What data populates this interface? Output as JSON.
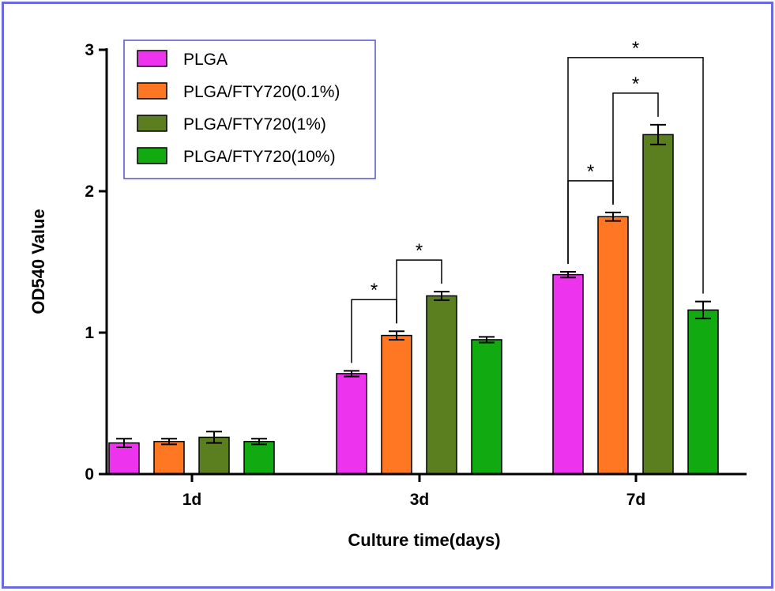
{
  "chart_data": {
    "type": "bar",
    "xlabel": "Culture time(days)",
    "ylabel": "OD540 Value",
    "categories": [
      "1d",
      "3d",
      "7d"
    ],
    "ylim": [
      0,
      3
    ],
    "yticks": [
      0,
      1,
      2,
      3
    ],
    "series": [
      {
        "name": "PLGA",
        "color": "#ee33ee",
        "values": [
          0.22,
          0.71,
          1.41
        ],
        "errors": [
          0.03,
          0.02,
          0.02
        ]
      },
      {
        "name": "PLGA/FTY720(0.1%)",
        "color": "#ff7722",
        "values": [
          0.23,
          0.98,
          1.82
        ],
        "errors": [
          0.02,
          0.03,
          0.03
        ]
      },
      {
        "name": "PLGA/FTY720(1%)",
        "color": "#5b7f1e",
        "values": [
          0.26,
          1.26,
          2.4
        ],
        "errors": [
          0.04,
          0.03,
          0.07
        ]
      },
      {
        "name": "PLGA/FTY720(10%)",
        "color": "#11aa11",
        "values": [
          0.23,
          0.95,
          1.16
        ],
        "errors": [
          0.02,
          0.02,
          0.06
        ]
      }
    ],
    "significance": [
      {
        "category": "3d",
        "from_series": 0,
        "to_series": 1,
        "label": "*"
      },
      {
        "category": "3d",
        "from_series": 1,
        "to_series": 2,
        "label": "*"
      },
      {
        "category": "7d",
        "from_series": 1,
        "to_series": 0,
        "label": "*"
      },
      {
        "category": "7d",
        "from_series": 1,
        "to_series": 2,
        "label": "*"
      },
      {
        "category": "7d",
        "from_series": 0,
        "to_series": 3,
        "label": "*"
      }
    ],
    "legend_position": "top-left",
    "grid": false
  }
}
